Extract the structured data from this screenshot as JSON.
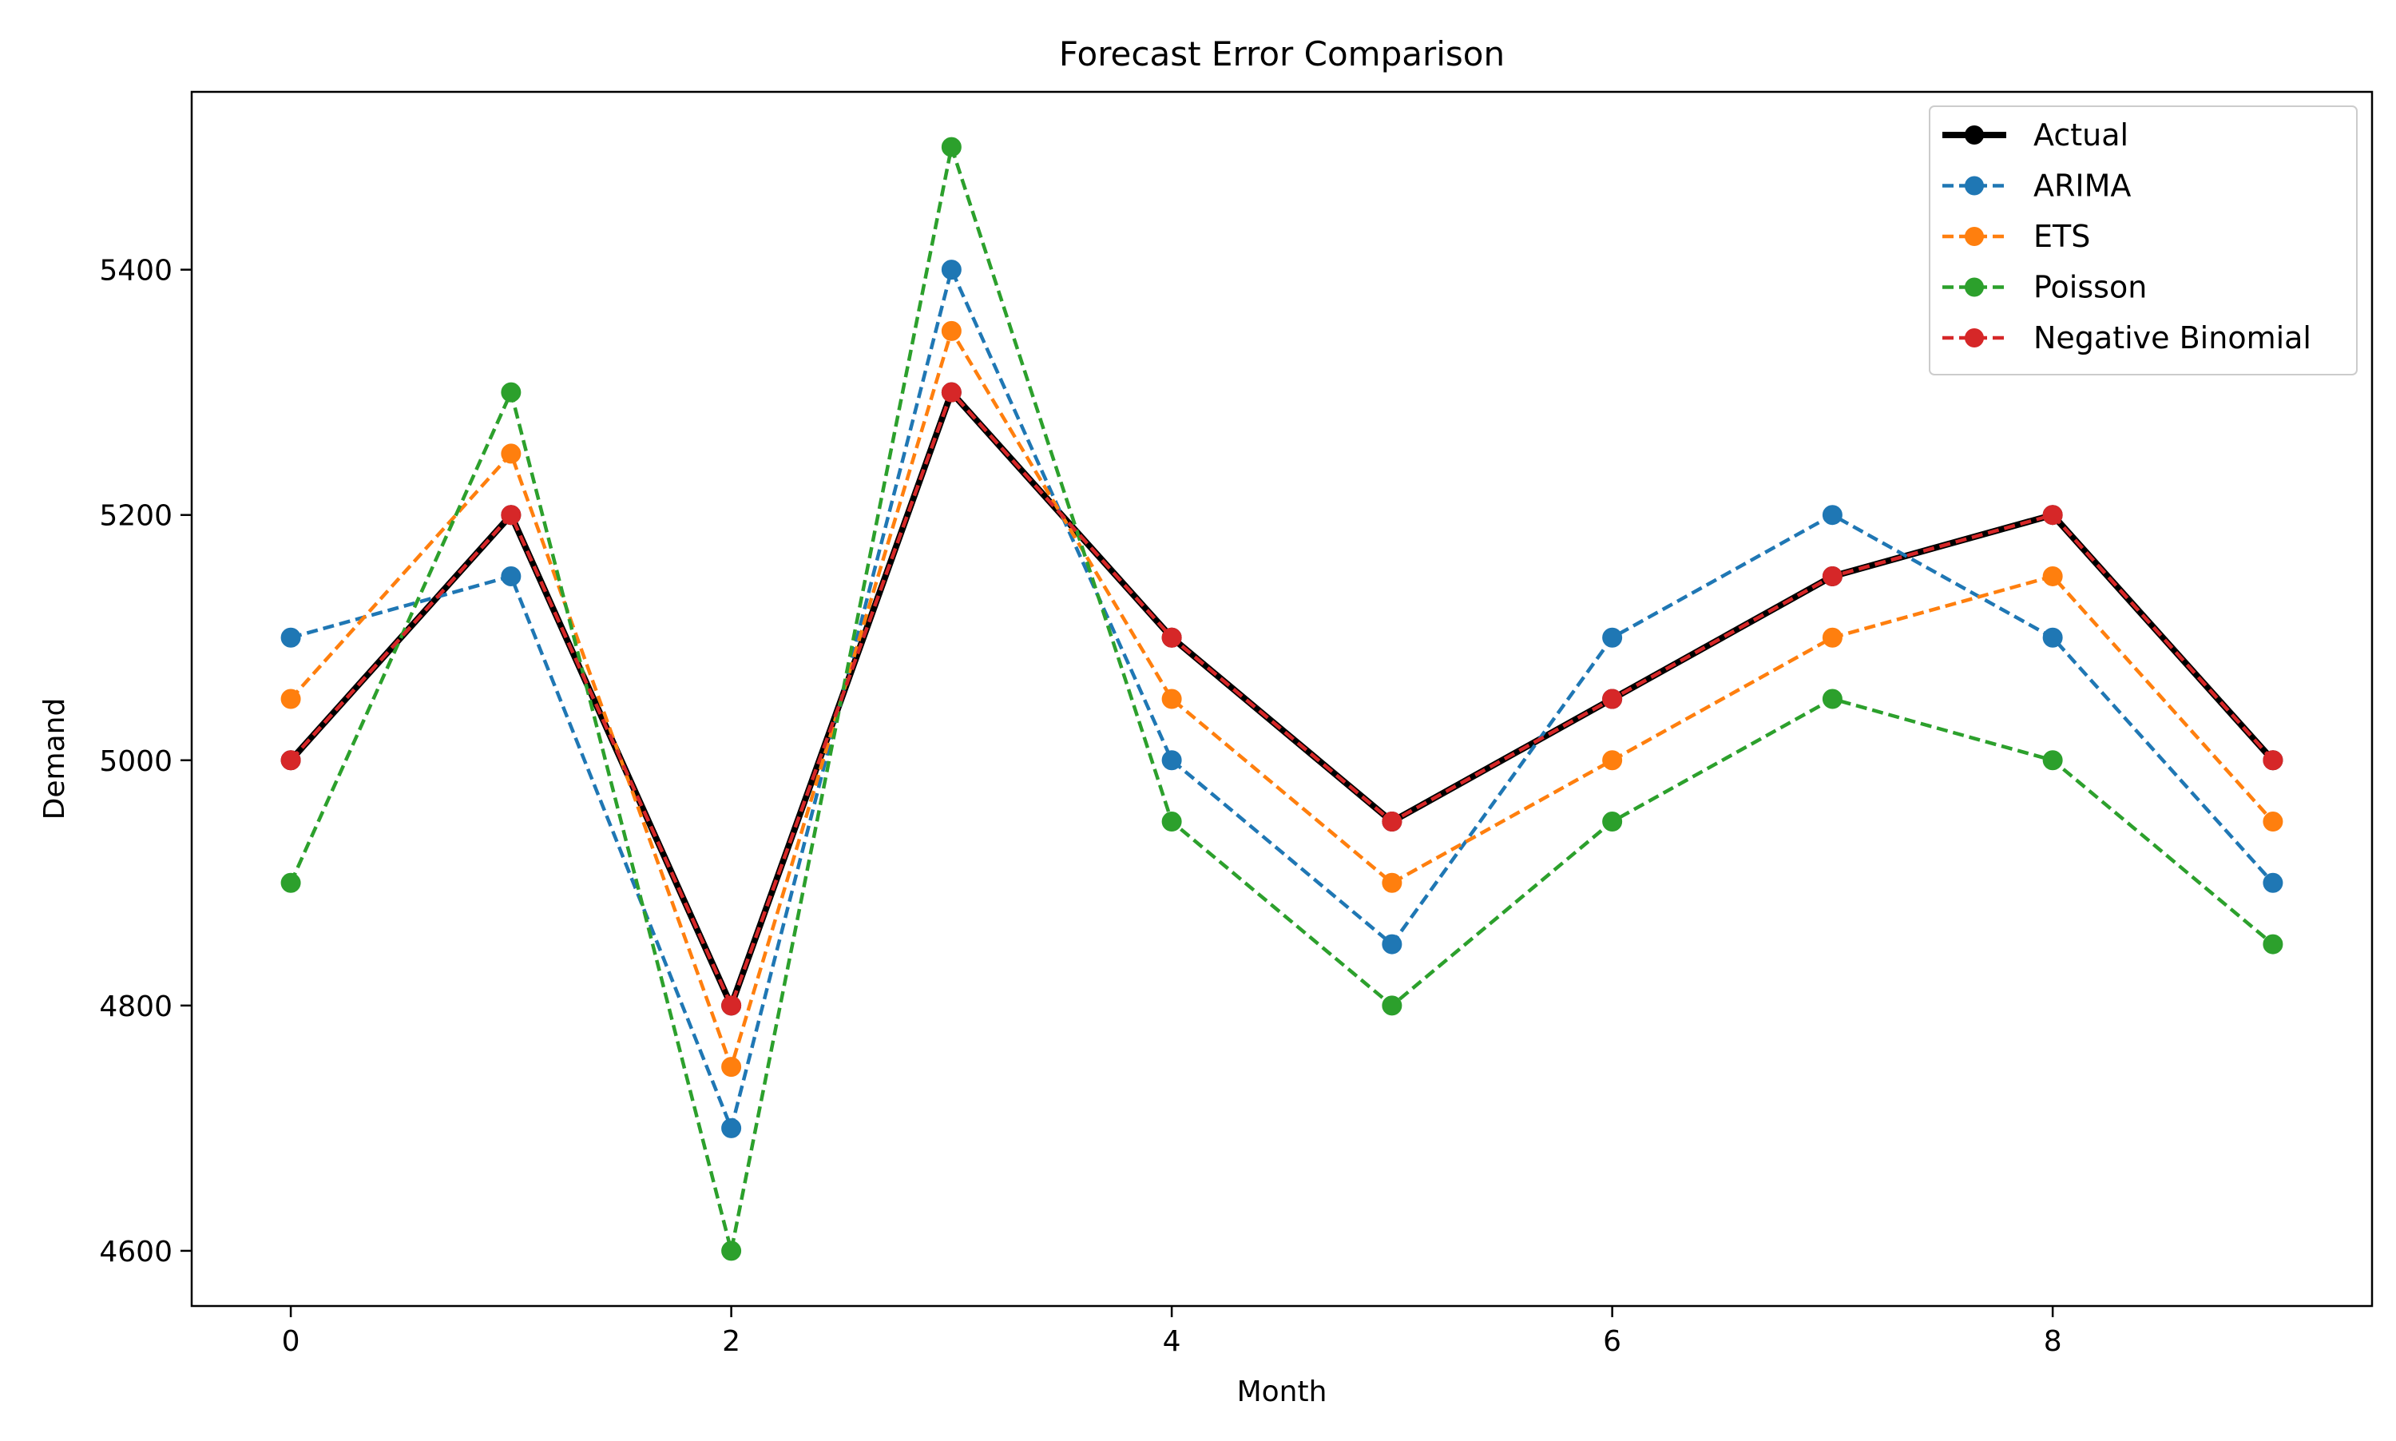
{
  "chart_data": {
    "type": "line",
    "title": "Forecast Error Comparison",
    "xlabel": "Month",
    "ylabel": "Demand",
    "x": [
      0,
      1,
      2,
      3,
      4,
      5,
      6,
      7,
      8,
      9
    ],
    "xlim": [
      -0.45,
      9.45
    ],
    "ylim": [
      4555,
      5545
    ],
    "xticks": [
      0,
      2,
      4,
      6,
      8
    ],
    "yticks": [
      4600,
      4800,
      5000,
      5200,
      5400
    ],
    "grid": false,
    "legend_position": "top-right",
    "series": [
      {
        "name": "Actual",
        "color": "#000000",
        "line_style": "solid",
        "marker": "circle",
        "values": [
          5000,
          5200,
          4800,
          5300,
          5100,
          4950,
          5050,
          5150,
          5200,
          5000
        ]
      },
      {
        "name": "ARIMA",
        "color": "#1f77b4",
        "line_style": "dashed",
        "marker": "circle",
        "values": [
          5100,
          5150,
          4700,
          5400,
          5000,
          4850,
          5100,
          5200,
          5100,
          4900
        ]
      },
      {
        "name": "ETS",
        "color": "#ff7f0e",
        "line_style": "dashed",
        "marker": "circle",
        "values": [
          5050,
          5250,
          4750,
          5350,
          5050,
          4900,
          5000,
          5100,
          5150,
          4950
        ]
      },
      {
        "name": "Poisson",
        "color": "#2ca02c",
        "line_style": "dashed",
        "marker": "circle",
        "values": [
          4900,
          5300,
          4600,
          5500,
          4950,
          4800,
          4950,
          5050,
          5000,
          4850
        ]
      },
      {
        "name": "Negative Binomial",
        "color": "#d62728",
        "line_style": "dashed",
        "marker": "circle",
        "values": [
          5000,
          5200,
          4800,
          5300,
          5100,
          4950,
          5050,
          5150,
          5200,
          5000
        ]
      }
    ]
  }
}
